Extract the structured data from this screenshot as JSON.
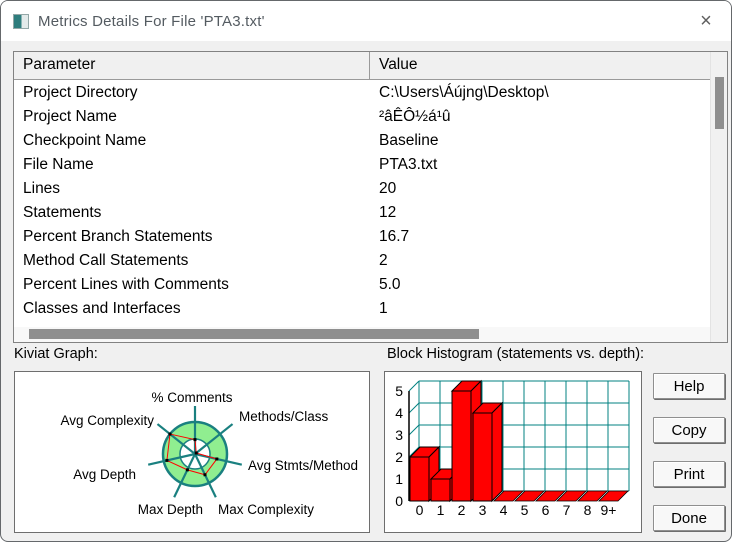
{
  "window": {
    "title": "Metrics Details For File 'PTA3.txt'",
    "close_glyph": "×"
  },
  "table": {
    "columns": [
      "Parameter",
      "Value"
    ],
    "rows": [
      [
        "Project Directory",
        "C:\\Users\\Áújng\\Desktop\\"
      ],
      [
        "Project Name",
        "²âÊÔ½á¹û"
      ],
      [
        "Checkpoint Name",
        "Baseline"
      ],
      [
        "File Name",
        "PTA3.txt"
      ],
      [
        "Lines",
        "20"
      ],
      [
        "Statements",
        "12"
      ],
      [
        "Percent Branch Statements",
        "16.7"
      ],
      [
        "Method Call Statements",
        "2"
      ],
      [
        "Percent Lines with Comments",
        "5.0"
      ],
      [
        "Classes and Interfaces",
        "1"
      ]
    ]
  },
  "sections": {
    "kiviat_label": "Kiviat Graph:",
    "histogram_label": "Block Histogram (statements vs. depth):"
  },
  "buttons": {
    "help": "Help",
    "copy": "Copy",
    "print": "Print",
    "done": "Done"
  },
  "chart_data": [
    {
      "type": "radar",
      "title": "Kiviat Graph",
      "axes": [
        "% Comments",
        "Methods/Class",
        "Avg Stmts/Method",
        "Max Complexity",
        "Max Depth",
        "Avg Depth",
        "Avg Complexity"
      ],
      "values_normalized": [
        0.45,
        0.05,
        0.7,
        0.72,
        0.55,
        0.9,
        1.0
      ],
      "ring": {
        "inner_radius_ratio": 0.47
      },
      "colors": {
        "ring_fill": "#90ee90",
        "ring_stroke": "#1a8080",
        "spokes": "#1a8080",
        "polygon": "#ff0000",
        "markers": "#000000"
      },
      "legend_position": "none",
      "grid": false
    },
    {
      "type": "bar",
      "title": "Block Histogram (statements vs. depth)",
      "categories": [
        "0",
        "1",
        "2",
        "3",
        "4",
        "5",
        "6",
        "7",
        "8",
        "9+"
      ],
      "values": [
        2,
        1,
        5,
        4,
        0,
        0,
        0,
        0,
        0,
        0
      ],
      "ylim": [
        0,
        5
      ],
      "yticks": [
        0,
        1,
        2,
        3,
        4,
        5
      ],
      "style": "3d-bars",
      "grid": true,
      "colors": {
        "bar_fill": "#ff0000",
        "bar_stroke": "#000000",
        "grid": "#008080",
        "axis": "#000000"
      }
    }
  ]
}
